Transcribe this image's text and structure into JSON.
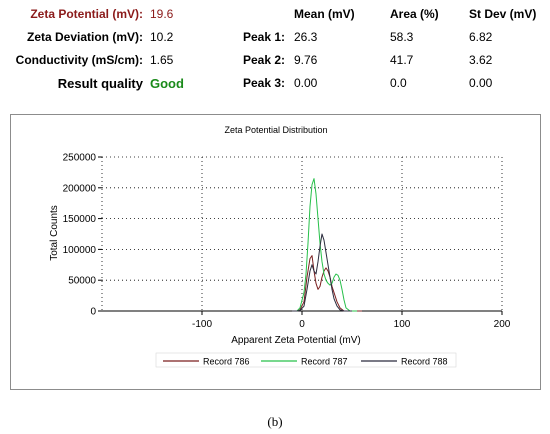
{
  "summary": {
    "zeta_potential": {
      "label": "Zeta Potential (mV):",
      "value": "19.6"
    },
    "zeta_deviation": {
      "label": "Zeta Deviation (mV):",
      "value": "10.2"
    },
    "conductivity": {
      "label": "Conductivity (mS/cm):",
      "value": "1.65"
    },
    "result_quality": {
      "label": "Result quality",
      "value": "Good"
    }
  },
  "peaks": {
    "headers": {
      "mean": "Mean (mV)",
      "area": "Area (%)",
      "stdev": "St Dev (mV)"
    },
    "rows": [
      {
        "label": "Peak 1:",
        "mean": "26.3",
        "area": "58.3",
        "stdev": "6.82"
      },
      {
        "label": "Peak 2:",
        "mean": "9.76",
        "area": "41.7",
        "stdev": "3.62"
      },
      {
        "label": "Peak 3:",
        "mean": "0.00",
        "area": "0.0",
        "stdev": "0.00"
      }
    ]
  },
  "caption": "(b)",
  "colors": {
    "record_786": "#7a1f1f",
    "record_787": "#27c04a",
    "record_788": "#2b2b3d",
    "axis": "#000000"
  },
  "chart_data": {
    "type": "line",
    "title": "Zeta Potential Distribution",
    "xlabel": "Apparent Zeta Potential (mV)",
    "ylabel": "Total Counts",
    "xlim": [
      -200,
      200
    ],
    "ylim": [
      0,
      250000
    ],
    "xticks": [
      -100,
      0,
      100,
      200
    ],
    "yticks": [
      0,
      50000,
      100000,
      150000,
      200000,
      250000
    ],
    "grid": true,
    "legend_position": "bottom",
    "series": [
      {
        "name": "Record 786",
        "x": [
          -10,
          -5,
          -2,
          2,
          5,
          8,
          10,
          12,
          14,
          16,
          18,
          20,
          22,
          24,
          26,
          28,
          30,
          32,
          35,
          38,
          42,
          46,
          50,
          60
        ],
        "y": [
          0,
          0,
          2000,
          15000,
          55000,
          85000,
          90000,
          65000,
          45000,
          35000,
          40000,
          55000,
          65000,
          70000,
          65000,
          55000,
          40000,
          30000,
          15000,
          5000,
          0,
          0,
          0,
          0
        ]
      },
      {
        "name": "Record 787",
        "x": [
          -10,
          -5,
          -2,
          2,
          4,
          6,
          8,
          10,
          12,
          14,
          16,
          18,
          20,
          22,
          24,
          26,
          28,
          30,
          32,
          34,
          36,
          38,
          40,
          42,
          44,
          48,
          55
        ],
        "y": [
          0,
          0,
          5000,
          30000,
          60000,
          110000,
          170000,
          205000,
          215000,
          190000,
          150000,
          110000,
          80000,
          60000,
          50000,
          45000,
          42000,
          45000,
          55000,
          60000,
          58000,
          50000,
          35000,
          18000,
          5000,
          0,
          0
        ]
      },
      {
        "name": "Record 788",
        "x": [
          -10,
          -5,
          -2,
          2,
          5,
          8,
          10,
          12,
          14,
          16,
          18,
          20,
          22,
          24,
          26,
          28,
          30,
          32,
          35,
          38,
          42,
          50
        ],
        "y": [
          0,
          0,
          1000,
          8000,
          35000,
          65000,
          75000,
          65000,
          60000,
          80000,
          105000,
          125000,
          115000,
          95000,
          75000,
          55000,
          35000,
          20000,
          8000,
          2000,
          0,
          0
        ]
      }
    ]
  }
}
